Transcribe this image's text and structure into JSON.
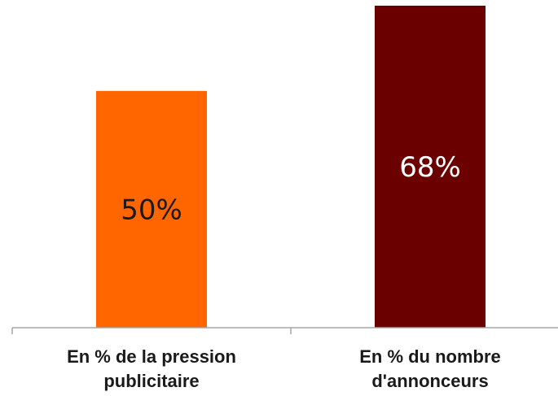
{
  "chart_data": {
    "type": "bar",
    "categories": [
      [
        "En % de la pression",
        "publicitaire"
      ],
      [
        "En % du nombre",
        "d'annonceurs"
      ]
    ],
    "values": [
      50,
      68
    ],
    "data_labels": [
      "50%",
      "68%"
    ],
    "colors": [
      "#ff6600",
      "#6b0000"
    ],
    "label_colors": [
      "#1a1a1a",
      "#ffffff"
    ],
    "axis_color": "#a6a6a6",
    "ylim": [
      0,
      68
    ],
    "title": "",
    "xlabel": "",
    "ylabel": "",
    "grid": false,
    "legend": "none"
  }
}
